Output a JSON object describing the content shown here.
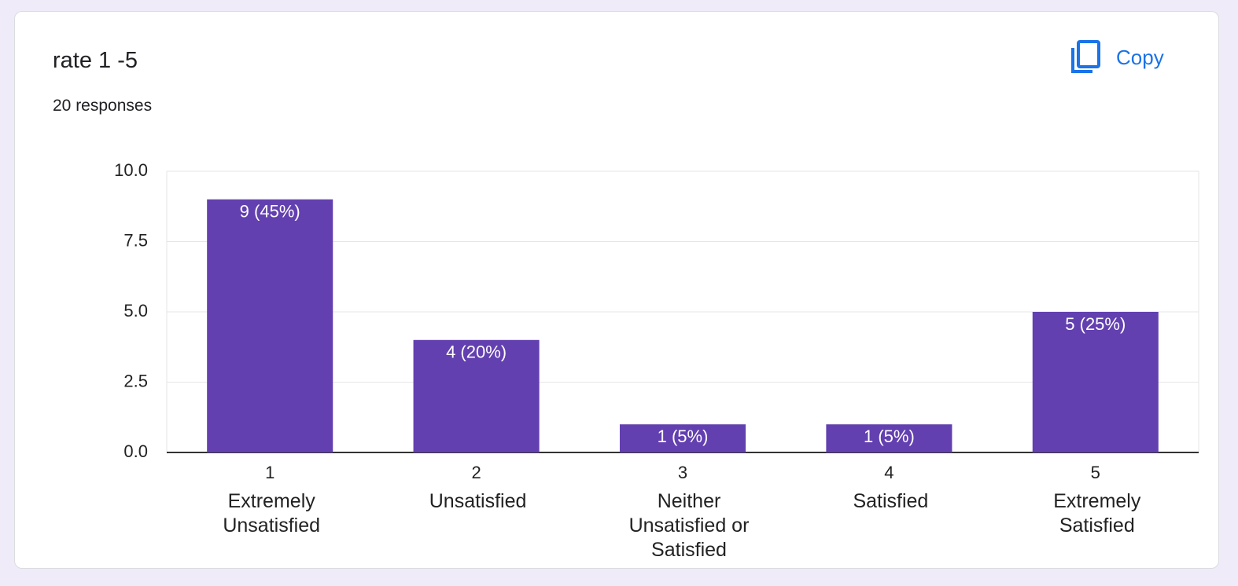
{
  "chart_data": {
    "type": "bar",
    "title": "rate 1 -5",
    "subtitle": "20 responses",
    "button": "Copy",
    "categories": [
      "1",
      "2",
      "3",
      "4",
      "5"
    ],
    "category_descriptions": [
      "Extremely Unsatisfied",
      "Unsatisfied",
      "Neither Unsatisfied or Satisfied",
      "Satisfied",
      "Extremely Satisfied"
    ],
    "values": [
      9,
      4,
      1,
      1,
      5
    ],
    "value_labels": [
      "9 (45%)",
      "4 (20%)",
      "1 (5%)",
      "1 (5%)",
      "5 (25%)"
    ],
    "color": "#6340b0",
    "ylim": [
      0,
      10
    ],
    "yticks": [
      {
        "value": 0,
        "label": "0.0"
      },
      2.5,
      {
        "value": 5,
        "label": "5.0"
      },
      7.5,
      {
        "value": 10,
        "label": "10.0"
      }
    ],
    "grid": true
  }
}
